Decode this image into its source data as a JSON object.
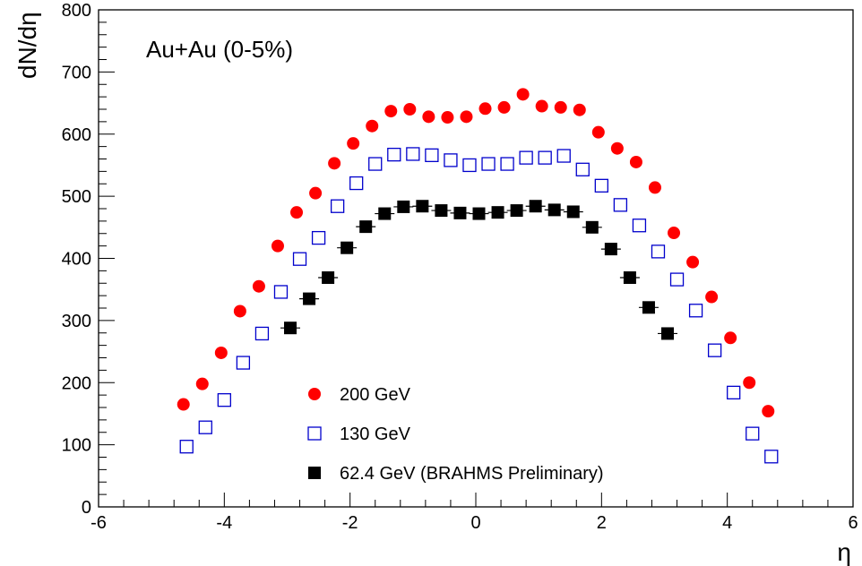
{
  "chart_data": {
    "type": "scatter",
    "title": "",
    "annotation": "Au+Au (0-5%)",
    "xlabel": "η",
    "ylabel": "dN/dη",
    "xlim": [
      -6,
      6
    ],
    "ylim": [
      0,
      800
    ],
    "xticks": [
      -6,
      -4,
      -2,
      0,
      2,
      4,
      6
    ],
    "yticks": [
      0,
      100,
      200,
      300,
      400,
      500,
      600,
      700,
      800
    ],
    "grid": false,
    "legend_position": "bottom-center",
    "series": [
      {
        "name": "200 GeV",
        "marker": "filled-circle",
        "color": "#ff0000",
        "x": [
          -4.65,
          -4.35,
          -4.05,
          -3.75,
          -3.45,
          -3.15,
          -2.85,
          -2.55,
          -2.25,
          -1.95,
          -1.65,
          -1.35,
          -1.05,
          -0.75,
          -0.45,
          -0.15,
          0.15,
          0.45,
          0.75,
          1.05,
          1.35,
          1.65,
          1.95,
          2.25,
          2.55,
          2.85,
          3.15,
          3.45,
          3.75,
          4.05,
          4.35,
          4.65
        ],
        "y": [
          165,
          198,
          248,
          315,
          355,
          420,
          474,
          505,
          553,
          585,
          613,
          637,
          640,
          628,
          627,
          628,
          641,
          643,
          664,
          645,
          643,
          639,
          603,
          577,
          555,
          514,
          441,
          394,
          338,
          272,
          200,
          154
        ]
      },
      {
        "name": "130 GeV",
        "marker": "open-square",
        "color": "#0000cc",
        "x": [
          -4.6,
          -4.3,
          -4.0,
          -3.7,
          -3.4,
          -3.1,
          -2.8,
          -2.5,
          -2.2,
          -1.9,
          -1.6,
          -1.3,
          -1.0,
          -0.7,
          -0.4,
          -0.1,
          0.2,
          0.5,
          0.8,
          1.1,
          1.4,
          1.7,
          2.0,
          2.3,
          2.6,
          2.9,
          3.2,
          3.5,
          3.8,
          4.1,
          4.4,
          4.7
        ],
        "y": [
          97,
          128,
          172,
          232,
          279,
          346,
          399,
          433,
          484,
          521,
          552,
          567,
          568,
          566,
          558,
          550,
          552,
          552,
          562,
          562,
          565,
          543,
          517,
          486,
          453,
          411,
          366,
          316,
          252,
          184,
          118,
          81
        ]
      },
      {
        "name": "62.4 GeV (BRAHMS Preliminary)",
        "marker": "filled-square",
        "color": "#000000",
        "x": [
          -2.95,
          -2.65,
          -2.35,
          -2.05,
          -1.75,
          -1.45,
          -1.15,
          -0.85,
          -0.55,
          -0.25,
          0.05,
          0.35,
          0.65,
          0.95,
          1.25,
          1.55,
          1.85,
          2.15,
          2.45,
          2.75,
          3.05
        ],
        "y": [
          288,
          335,
          369,
          417,
          451,
          472,
          483,
          484,
          477,
          473,
          472,
          474,
          477,
          484,
          478,
          475,
          450,
          415,
          369,
          321,
          279
        ]
      }
    ]
  }
}
